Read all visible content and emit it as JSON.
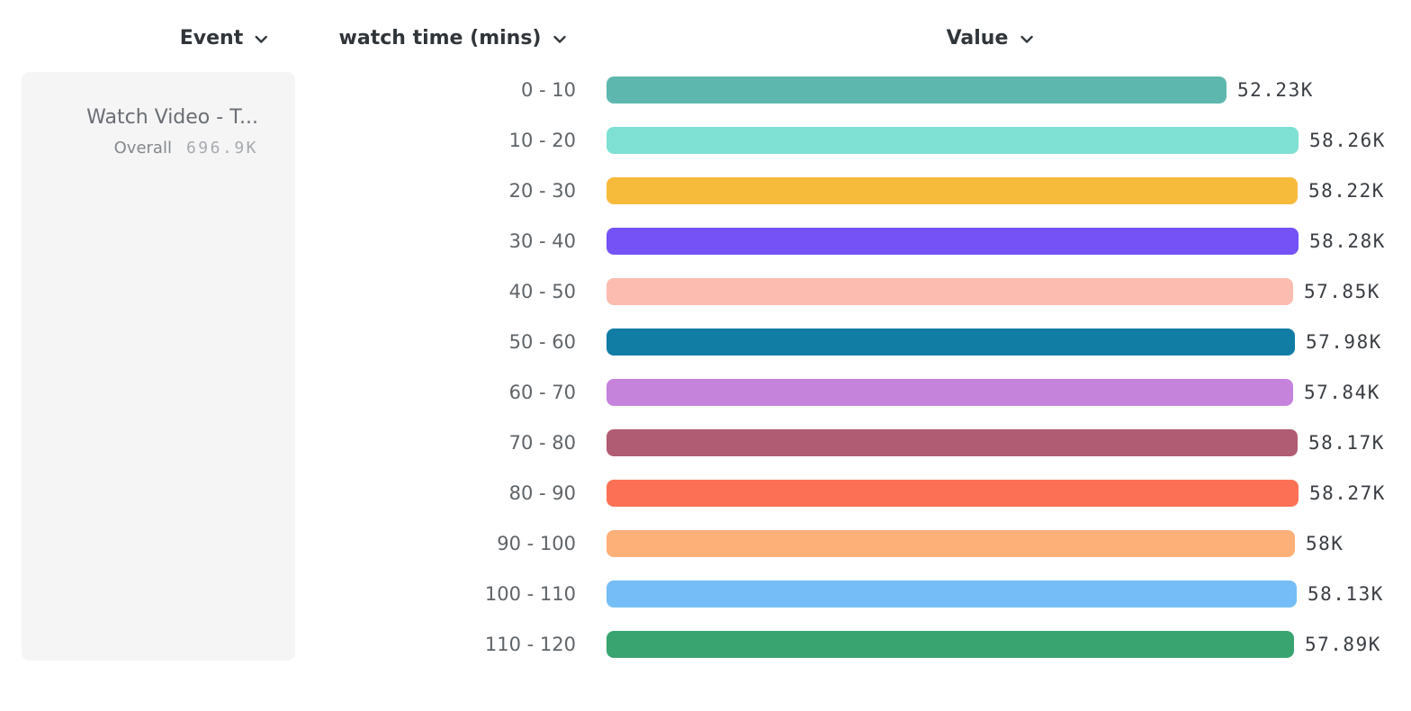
{
  "header": {
    "columns": [
      {
        "id": "event",
        "label": "Event"
      },
      {
        "id": "breakdown",
        "label": "watch time (mins)"
      },
      {
        "id": "value",
        "label": "Value"
      }
    ]
  },
  "legend_card": {
    "event_name": "Watch Video - T...",
    "overall_label": "Overall",
    "overall_value": "696.9K"
  },
  "chart_data": {
    "type": "bar",
    "orientation": "horizontal",
    "title": "",
    "series_name": "Watch Video - T...",
    "xlabel": "Value",
    "ylabel": "watch time (mins)",
    "grid": false,
    "legend_position": "left",
    "categories": [
      "0 - 10",
      "10 - 20",
      "20 - 30",
      "30 - 40",
      "40 - 50",
      "50 - 60",
      "60 - 70",
      "70 - 80",
      "80 - 90",
      "90 - 100",
      "100 - 110",
      "110 - 120"
    ],
    "values": [
      52230,
      58260,
      58220,
      58280,
      57850,
      57980,
      57840,
      58170,
      58270,
      58000,
      58130,
      57890
    ],
    "value_labels": [
      "52.23K",
      "58.26K",
      "58.22K",
      "58.28K",
      "57.85K",
      "57.98K",
      "57.84K",
      "58.17K",
      "58.27K",
      "58K",
      "58.13K",
      "57.89K"
    ],
    "colors": [
      "#5EB7AF",
      "#7FE0D4",
      "#F7BB3C",
      "#7452F5",
      "#FDBCB0",
      "#117DA5",
      "#C583DC",
      "#B05C72",
      "#FC7156",
      "#FDB078",
      "#74BDF6",
      "#3AA471"
    ],
    "xlim": [
      0,
      58280
    ]
  },
  "ui_colors": {
    "header_text": "#30353a",
    "row_label_text": "#5f6468",
    "value_text": "#3a3e43",
    "card_background": "#f5f5f6"
  }
}
